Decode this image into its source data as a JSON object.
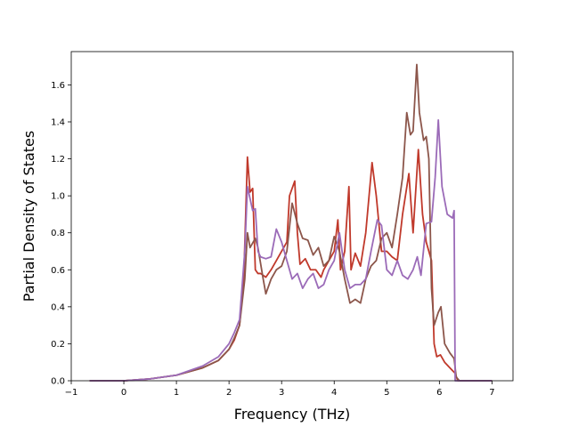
{
  "chart_data": {
    "type": "line",
    "xlabel": "Frequency (THz)",
    "ylabel": "Partial Density of States",
    "xlim": [
      -1,
      7.4
    ],
    "ylim": [
      0,
      1.78
    ],
    "xticks": [
      -1,
      0,
      1,
      2,
      3,
      4,
      5,
      6,
      7
    ],
    "yticks": [
      0.0,
      0.2,
      0.4,
      0.6,
      0.8,
      1.0,
      1.2,
      1.4,
      1.6
    ],
    "xtick_labels": [
      "−1",
      "0",
      "1",
      "2",
      "3",
      "4",
      "5",
      "6",
      "7"
    ],
    "ytick_labels": [
      "0.0",
      "0.2",
      "0.4",
      "0.6",
      "0.8",
      "1.0",
      "1.2",
      "1.4",
      "1.6"
    ],
    "grid": false,
    "legend": "none",
    "series": [
      {
        "color": "#c0392b",
        "points": [
          [
            -0.65,
            0
          ],
          [
            0,
            0
          ],
          [
            0.5,
            0.01
          ],
          [
            1,
            0.03
          ],
          [
            1.5,
            0.07
          ],
          [
            1.8,
            0.11
          ],
          [
            2.0,
            0.17
          ],
          [
            2.1,
            0.22
          ],
          [
            2.2,
            0.3
          ],
          [
            2.28,
            0.55
          ],
          [
            2.35,
            1.21
          ],
          [
            2.4,
            1.02
          ],
          [
            2.45,
            1.04
          ],
          [
            2.5,
            0.6
          ],
          [
            2.55,
            0.58
          ],
          [
            2.6,
            0.58
          ],
          [
            2.7,
            0.56
          ],
          [
            2.8,
            0.6
          ],
          [
            2.9,
            0.65
          ],
          [
            3.0,
            0.7
          ],
          [
            3.1,
            0.75
          ],
          [
            3.15,
            1.0
          ],
          [
            3.25,
            1.08
          ],
          [
            3.3,
            0.8
          ],
          [
            3.35,
            0.63
          ],
          [
            3.45,
            0.66
          ],
          [
            3.55,
            0.6
          ],
          [
            3.65,
            0.6
          ],
          [
            3.75,
            0.56
          ],
          [
            3.8,
            0.6
          ],
          [
            3.9,
            0.65
          ],
          [
            4.0,
            0.7
          ],
          [
            4.07,
            0.87
          ],
          [
            4.12,
            0.6
          ],
          [
            4.2,
            0.7
          ],
          [
            4.28,
            1.05
          ],
          [
            4.32,
            0.6
          ],
          [
            4.4,
            0.69
          ],
          [
            4.5,
            0.62
          ],
          [
            4.6,
            0.8
          ],
          [
            4.72,
            1.18
          ],
          [
            4.8,
            1.0
          ],
          [
            4.9,
            0.7
          ],
          [
            5.0,
            0.7
          ],
          [
            5.1,
            0.67
          ],
          [
            5.2,
            0.65
          ],
          [
            5.3,
            0.9
          ],
          [
            5.42,
            1.12
          ],
          [
            5.5,
            0.8
          ],
          [
            5.6,
            1.25
          ],
          [
            5.68,
            0.9
          ],
          [
            5.75,
            0.75
          ],
          [
            5.85,
            0.65
          ],
          [
            5.9,
            0.2
          ],
          [
            5.95,
            0.13
          ],
          [
            6.02,
            0.14
          ],
          [
            6.1,
            0.1
          ],
          [
            6.2,
            0.07
          ],
          [
            6.3,
            0.04
          ],
          [
            6.35,
            0.0
          ],
          [
            7.0,
            0.0
          ]
        ]
      },
      {
        "color": "#8c564b",
        "points": [
          [
            -0.65,
            0
          ],
          [
            0,
            0
          ],
          [
            0.5,
            0.01
          ],
          [
            1,
            0.03
          ],
          [
            1.5,
            0.07
          ],
          [
            1.8,
            0.11
          ],
          [
            2.0,
            0.17
          ],
          [
            2.1,
            0.23
          ],
          [
            2.2,
            0.3
          ],
          [
            2.3,
            0.55
          ],
          [
            2.35,
            0.8
          ],
          [
            2.4,
            0.72
          ],
          [
            2.5,
            0.77
          ],
          [
            2.55,
            0.72
          ],
          [
            2.65,
            0.55
          ],
          [
            2.7,
            0.47
          ],
          [
            2.8,
            0.55
          ],
          [
            2.9,
            0.6
          ],
          [
            3.0,
            0.62
          ],
          [
            3.1,
            0.7
          ],
          [
            3.2,
            0.96
          ],
          [
            3.3,
            0.85
          ],
          [
            3.4,
            0.77
          ],
          [
            3.5,
            0.76
          ],
          [
            3.6,
            0.68
          ],
          [
            3.7,
            0.72
          ],
          [
            3.8,
            0.62
          ],
          [
            3.9,
            0.65
          ],
          [
            4.0,
            0.78
          ],
          [
            4.1,
            0.7
          ],
          [
            4.2,
            0.55
          ],
          [
            4.3,
            0.42
          ],
          [
            4.4,
            0.44
          ],
          [
            4.5,
            0.42
          ],
          [
            4.6,
            0.55
          ],
          [
            4.7,
            0.62
          ],
          [
            4.8,
            0.65
          ],
          [
            4.9,
            0.77
          ],
          [
            5.0,
            0.8
          ],
          [
            5.1,
            0.72
          ],
          [
            5.2,
            0.9
          ],
          [
            5.3,
            1.1
          ],
          [
            5.38,
            1.45
          ],
          [
            5.45,
            1.33
          ],
          [
            5.5,
            1.35
          ],
          [
            5.57,
            1.71
          ],
          [
            5.62,
            1.45
          ],
          [
            5.7,
            1.3
          ],
          [
            5.75,
            1.32
          ],
          [
            5.8,
            1.2
          ],
          [
            5.85,
            0.5
          ],
          [
            5.9,
            0.3
          ],
          [
            5.98,
            0.37
          ],
          [
            6.03,
            0.4
          ],
          [
            6.1,
            0.2
          ],
          [
            6.2,
            0.15
          ],
          [
            6.28,
            0.12
          ],
          [
            6.32,
            0.02
          ],
          [
            6.38,
            0.0
          ],
          [
            7.0,
            0.0
          ]
        ]
      },
      {
        "color": "#9b6bb8",
        "points": [
          [
            -0.65,
            0
          ],
          [
            0,
            0
          ],
          [
            0.5,
            0.01
          ],
          [
            1,
            0.03
          ],
          [
            1.5,
            0.08
          ],
          [
            1.8,
            0.13
          ],
          [
            2.0,
            0.2
          ],
          [
            2.1,
            0.26
          ],
          [
            2.2,
            0.33
          ],
          [
            2.3,
            0.7
          ],
          [
            2.35,
            1.05
          ],
          [
            2.45,
            0.92
          ],
          [
            2.5,
            0.93
          ],
          [
            2.55,
            0.7
          ],
          [
            2.6,
            0.67
          ],
          [
            2.7,
            0.66
          ],
          [
            2.8,
            0.67
          ],
          [
            2.9,
            0.82
          ],
          [
            3.0,
            0.75
          ],
          [
            3.1,
            0.65
          ],
          [
            3.2,
            0.55
          ],
          [
            3.3,
            0.58
          ],
          [
            3.4,
            0.5
          ],
          [
            3.5,
            0.55
          ],
          [
            3.6,
            0.58
          ],
          [
            3.7,
            0.5
          ],
          [
            3.8,
            0.52
          ],
          [
            3.9,
            0.6
          ],
          [
            4.0,
            0.65
          ],
          [
            4.1,
            0.8
          ],
          [
            4.2,
            0.6
          ],
          [
            4.3,
            0.5
          ],
          [
            4.4,
            0.52
          ],
          [
            4.5,
            0.52
          ],
          [
            4.6,
            0.55
          ],
          [
            4.7,
            0.7
          ],
          [
            4.82,
            0.87
          ],
          [
            4.9,
            0.84
          ],
          [
            5.0,
            0.6
          ],
          [
            5.1,
            0.57
          ],
          [
            5.2,
            0.65
          ],
          [
            5.3,
            0.57
          ],
          [
            5.4,
            0.55
          ],
          [
            5.5,
            0.6
          ],
          [
            5.58,
            0.67
          ],
          [
            5.65,
            0.57
          ],
          [
            5.75,
            0.85
          ],
          [
            5.85,
            0.86
          ],
          [
            5.92,
            1.1
          ],
          [
            5.98,
            1.41
          ],
          [
            6.05,
            1.05
          ],
          [
            6.15,
            0.9
          ],
          [
            6.25,
            0.88
          ],
          [
            6.28,
            0.92
          ],
          [
            6.3,
            0.0
          ],
          [
            7.0,
            0.0
          ]
        ]
      }
    ]
  }
}
